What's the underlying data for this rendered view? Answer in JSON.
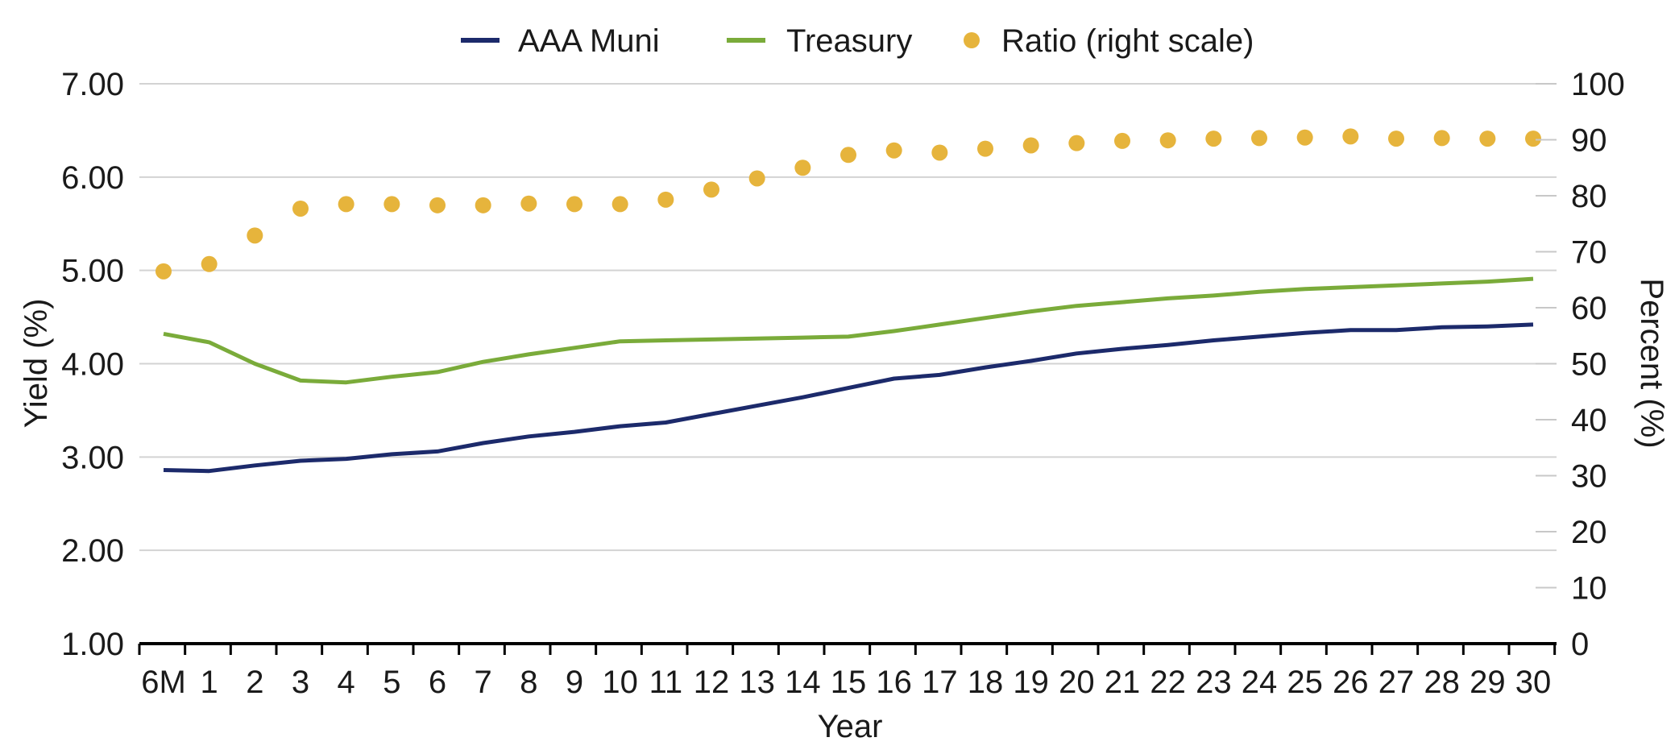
{
  "chart_data": {
    "type": "line",
    "categories": [
      "6M",
      "1",
      "2",
      "3",
      "4",
      "5",
      "6",
      "7",
      "8",
      "9",
      "10",
      "11",
      "12",
      "13",
      "14",
      "15",
      "16",
      "17",
      "18",
      "19",
      "20",
      "21",
      "22",
      "23",
      "24",
      "25",
      "26",
      "27",
      "28",
      "29",
      "30"
    ],
    "series": [
      {
        "name": "AAA Muni",
        "axis": "left",
        "kind": "line",
        "color": "#1c2a6b",
        "values": [
          2.86,
          2.85,
          2.91,
          2.96,
          2.98,
          3.03,
          3.06,
          3.15,
          3.22,
          3.27,
          3.33,
          3.37,
          3.46,
          3.55,
          3.64,
          3.74,
          3.84,
          3.88,
          3.96,
          4.03,
          4.11,
          4.16,
          4.2,
          4.25,
          4.29,
          4.33,
          4.36,
          4.36,
          4.39,
          4.4,
          4.42
        ]
      },
      {
        "name": "Treasury",
        "axis": "left",
        "kind": "line",
        "color": "#7aab3a",
        "values": [
          4.32,
          4.23,
          4.0,
          3.82,
          3.8,
          3.86,
          3.91,
          4.02,
          4.1,
          4.17,
          4.24,
          4.25,
          4.26,
          4.27,
          4.28,
          4.29,
          4.35,
          4.42,
          4.49,
          4.56,
          4.62,
          4.66,
          4.7,
          4.73,
          4.77,
          4.8,
          4.82,
          4.84,
          4.86,
          4.88,
          4.91
        ]
      },
      {
        "name": "Ratio (right scale)",
        "axis": "right",
        "kind": "scatter",
        "color": "#e6b43c",
        "values": [
          66.5,
          67.8,
          72.9,
          77.7,
          78.5,
          78.5,
          78.3,
          78.3,
          78.6,
          78.5,
          78.5,
          79.3,
          81.1,
          83.1,
          85.0,
          87.3,
          88.1,
          87.7,
          88.4,
          89.0,
          89.4,
          89.8,
          89.9,
          90.2,
          90.3,
          90.4,
          90.6,
          90.2,
          90.3,
          90.2,
          90.2
        ]
      }
    ],
    "xlabel": "Year",
    "ylabel": "Yield (%)",
    "y2label": "Percent (%)",
    "ylim": [
      1,
      7
    ],
    "y2lim": [
      0,
      100
    ],
    "yticks": [
      "1.00",
      "2.00",
      "3.00",
      "4.00",
      "5.00",
      "6.00",
      "7.00"
    ],
    "y2ticks": [
      "0",
      "10",
      "20",
      "30",
      "40",
      "50",
      "60",
      "70",
      "80",
      "90",
      "100"
    ],
    "grid": true,
    "legend_position": "top-center"
  }
}
